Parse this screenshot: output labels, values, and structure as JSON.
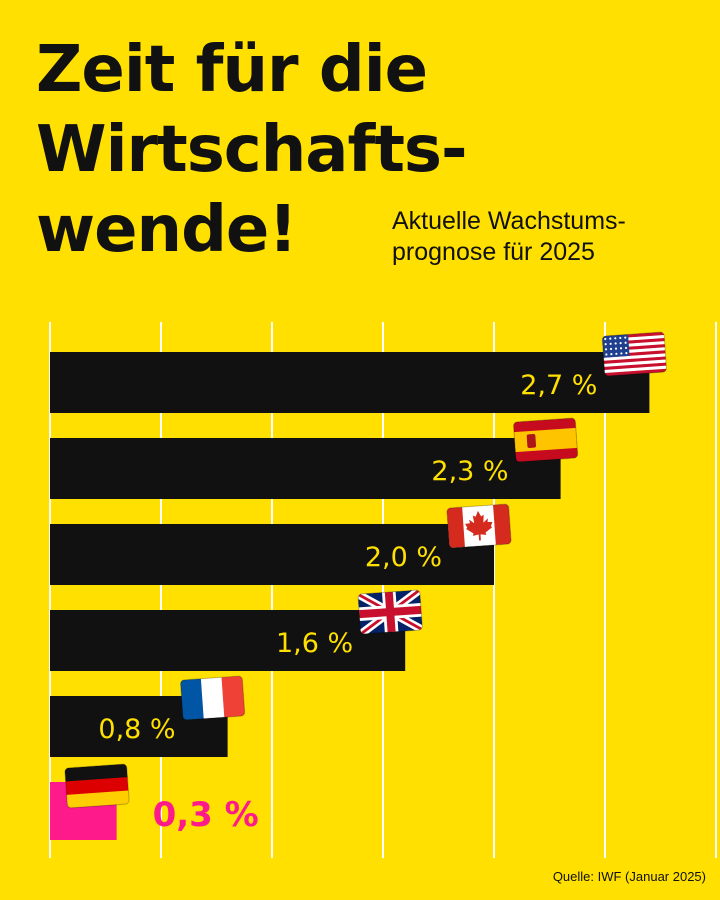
{
  "title_lines": [
    "Zeit für die",
    "Wirtschafts-",
    "wende!"
  ],
  "subtitle_lines": [
    "Aktuelle Wachstums-",
    "prognose für 2025"
  ],
  "source": "Quelle: IWF (Januar 2025)",
  "colors": {
    "background": "#FFE000",
    "bar": "#111111",
    "highlight": "#FF1A8C",
    "label": "#FFE000",
    "gridline": "#FFFFFF"
  },
  "chart_data": {
    "type": "bar",
    "orientation": "horizontal",
    "xlim": [
      0,
      3
    ],
    "grid": true,
    "categories": [
      "USA",
      "Spanien",
      "Kanada",
      "Großbritannien",
      "Frankreich",
      "Deutschland"
    ],
    "flag_icons": [
      "us-flag-icon",
      "es-flag-icon",
      "ca-flag-icon",
      "gb-flag-icon",
      "fr-flag-icon",
      "de-flag-icon"
    ],
    "values": [
      2.7,
      2.3,
      2.0,
      1.6,
      0.8,
      0.3
    ],
    "value_labels": [
      "2,7 %",
      "2,3 %",
      "2,0 %",
      "1,6 %",
      "0,8 %",
      "0,3 %"
    ],
    "highlight": "Deutschland"
  }
}
